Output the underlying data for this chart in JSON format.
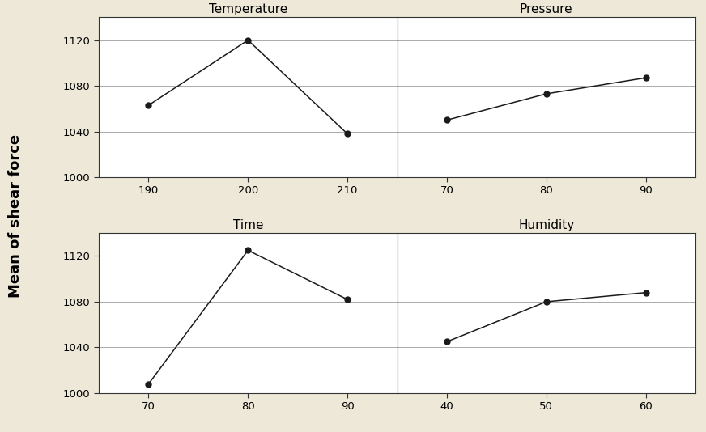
{
  "subplots": [
    {
      "title": "Temperature",
      "x": [
        190,
        200,
        210
      ],
      "y": [
        1063,
        1120,
        1038
      ],
      "xticks": [
        190,
        200,
        210
      ]
    },
    {
      "title": "Pressure",
      "x": [
        70,
        80,
        90
      ],
      "y": [
        1050,
        1073,
        1087
      ],
      "xticks": [
        70,
        80,
        90
      ]
    },
    {
      "title": "Time",
      "x": [
        70,
        80,
        90
      ],
      "y": [
        1008,
        1125,
        1082
      ],
      "xticks": [
        70,
        80,
        90
      ]
    },
    {
      "title": "Humidity",
      "x": [
        40,
        50,
        60
      ],
      "y": [
        1045,
        1080,
        1088
      ],
      "xticks": [
        40,
        50,
        60
      ]
    }
  ],
  "ylabel": "Mean of shear force",
  "ylim": [
    1000,
    1140
  ],
  "yticks": [
    1000,
    1040,
    1080,
    1120
  ],
  "bg_color": "#ede8d8",
  "plot_bg_color": "#ffffff",
  "line_color": "#1a1a1a",
  "marker": "o",
  "marker_size": 5,
  "line_width": 1.1,
  "title_fontsize": 11,
  "label_fontsize": 13,
  "tick_fontsize": 9.5,
  "grid_color": "#aaaaaa",
  "grid_lw": 0.7,
  "spine_color": "#333333",
  "spine_lw": 0.8
}
